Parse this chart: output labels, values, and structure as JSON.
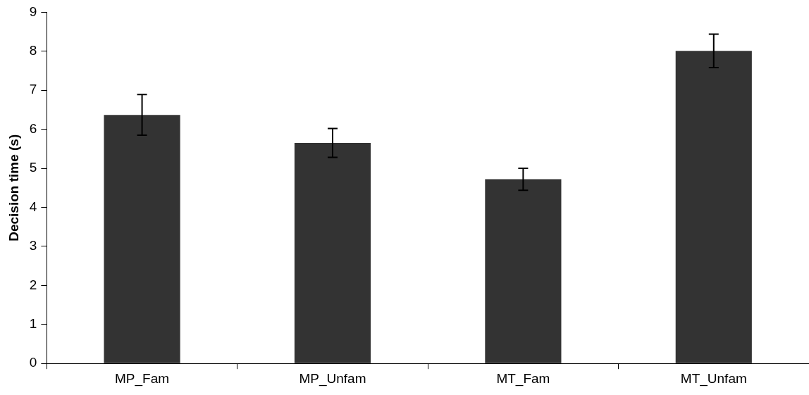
{
  "chart_data": {
    "type": "bar",
    "ylabel": "Decision time (s)",
    "categories": [
      "MP_Fam",
      "MP_Unfam",
      "MT_Fam",
      "MT_Unfam"
    ],
    "values": [
      6.37,
      5.65,
      4.72,
      8.01
    ],
    "errors": [
      0.52,
      0.37,
      0.28,
      0.43
    ],
    "color": "#333333",
    "ylim": [
      0,
      9
    ],
    "yticks": [
      0,
      1,
      2,
      3,
      4,
      5,
      6,
      7,
      8,
      9
    ],
    "grid": false,
    "legend": false
  }
}
